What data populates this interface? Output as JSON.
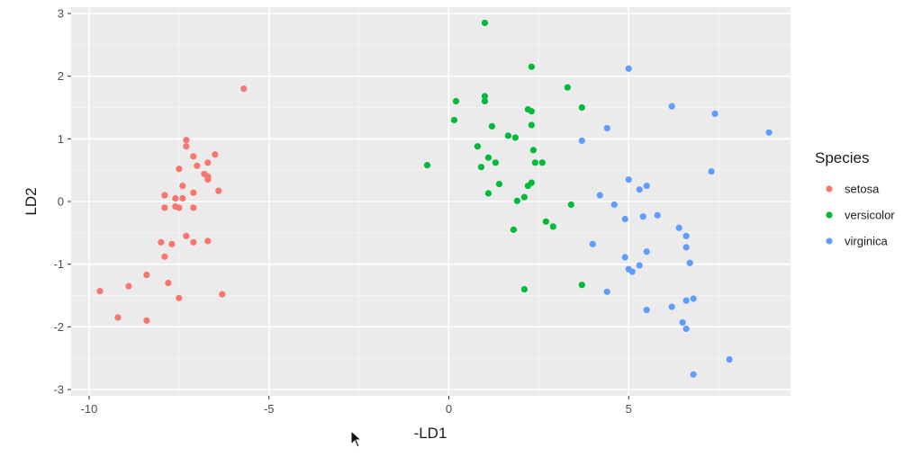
{
  "chart_data": {
    "type": "scatter",
    "xlabel": "-LD1",
    "ylabel": "LD2",
    "xlim": [
      -10.5,
      9.5
    ],
    "ylim": [
      -3.1,
      3.1
    ],
    "xticks": [
      -10,
      -5,
      0,
      5
    ],
    "yticks": [
      -3,
      -2,
      -1,
      0,
      1,
      2,
      3
    ],
    "grid": true,
    "legend": {
      "title": "Species",
      "position": "right"
    },
    "series": [
      {
        "name": "setosa",
        "color": "#f8766d",
        "points": [
          [
            -5.7,
            1.8
          ],
          [
            -7.3,
            0.98
          ],
          [
            -7.3,
            0.88
          ],
          [
            -7.1,
            0.72
          ],
          [
            -6.5,
            0.75
          ],
          [
            -7.0,
            0.57
          ],
          [
            -7.5,
            0.52
          ],
          [
            -6.7,
            0.62
          ],
          [
            -6.8,
            0.44
          ],
          [
            -6.7,
            0.4
          ],
          [
            -6.7,
            0.35
          ],
          [
            -7.4,
            0.25
          ],
          [
            -6.4,
            0.17
          ],
          [
            -7.1,
            0.14
          ],
          [
            -7.9,
            0.1
          ],
          [
            -7.4,
            0.05
          ],
          [
            -7.6,
            0.05
          ],
          [
            -7.6,
            -0.08
          ],
          [
            -7.5,
            -0.1
          ],
          [
            -7.9,
            -0.1
          ],
          [
            -7.1,
            -0.1
          ],
          [
            -7.3,
            -0.55
          ],
          [
            -6.7,
            -0.63
          ],
          [
            -7.1,
            -0.65
          ],
          [
            -8.0,
            -0.65
          ],
          [
            -7.7,
            -0.68
          ],
          [
            -7.9,
            -0.88
          ],
          [
            -8.4,
            -1.17
          ],
          [
            -8.9,
            -1.35
          ],
          [
            -7.8,
            -1.3
          ],
          [
            -9.7,
            -1.43
          ],
          [
            -6.3,
            -1.48
          ],
          [
            -7.5,
            -1.54
          ],
          [
            -9.2,
            -1.85
          ],
          [
            -8.4,
            -1.9
          ]
        ]
      },
      {
        "name": "versicolor",
        "color": "#00ba38",
        "points": [
          [
            1.0,
            2.85
          ],
          [
            2.3,
            2.15
          ],
          [
            3.3,
            1.82
          ],
          [
            1.0,
            1.68
          ],
          [
            0.2,
            1.6
          ],
          [
            1.0,
            1.6
          ],
          [
            2.2,
            1.47
          ],
          [
            2.3,
            1.44
          ],
          [
            3.7,
            1.5
          ],
          [
            0.15,
            1.3
          ],
          [
            1.2,
            1.2
          ],
          [
            2.3,
            1.22
          ],
          [
            1.65,
            1.05
          ],
          [
            1.85,
            1.02
          ],
          [
            0.8,
            0.88
          ],
          [
            2.35,
            0.82
          ],
          [
            1.1,
            0.7
          ],
          [
            1.3,
            0.62
          ],
          [
            2.4,
            0.62
          ],
          [
            2.6,
            0.62
          ],
          [
            -0.6,
            0.58
          ],
          [
            0.9,
            0.55
          ],
          [
            1.4,
            0.28
          ],
          [
            2.3,
            0.3
          ],
          [
            2.2,
            0.25
          ],
          [
            1.1,
            0.13
          ],
          [
            2.1,
            0.07
          ],
          [
            1.9,
            0.01
          ],
          [
            3.4,
            -0.05
          ],
          [
            2.7,
            -0.32
          ],
          [
            2.9,
            -0.4
          ],
          [
            1.8,
            -0.45
          ],
          [
            3.7,
            -1.33
          ],
          [
            2.1,
            -1.4
          ]
        ]
      },
      {
        "name": "virginica",
        "color": "#619cff",
        "points": [
          [
            5.0,
            2.12
          ],
          [
            6.2,
            1.52
          ],
          [
            7.4,
            1.4
          ],
          [
            8.9,
            1.1
          ],
          [
            4.4,
            1.17
          ],
          [
            3.7,
            0.97
          ],
          [
            7.3,
            0.48
          ],
          [
            5.0,
            0.35
          ],
          [
            5.5,
            0.25
          ],
          [
            5.3,
            0.19
          ],
          [
            4.2,
            0.1
          ],
          [
            4.6,
            -0.05
          ],
          [
            5.8,
            -0.22
          ],
          [
            5.4,
            -0.24
          ],
          [
            4.9,
            -0.28
          ],
          [
            6.4,
            -0.42
          ],
          [
            6.6,
            -0.55
          ],
          [
            6.6,
            -0.73
          ],
          [
            4.0,
            -0.68
          ],
          [
            5.5,
            -0.8
          ],
          [
            4.9,
            -0.89
          ],
          [
            6.7,
            -0.98
          ],
          [
            5.3,
            -1.02
          ],
          [
            5.0,
            -1.08
          ],
          [
            5.1,
            -1.12
          ],
          [
            4.4,
            -1.44
          ],
          [
            6.8,
            -1.55
          ],
          [
            6.6,
            -1.58
          ],
          [
            6.2,
            -1.68
          ],
          [
            5.5,
            -1.73
          ],
          [
            6.5,
            -1.93
          ],
          [
            6.6,
            -2.03
          ],
          [
            7.8,
            -2.52
          ],
          [
            6.8,
            -2.76
          ]
        ]
      }
    ]
  }
}
